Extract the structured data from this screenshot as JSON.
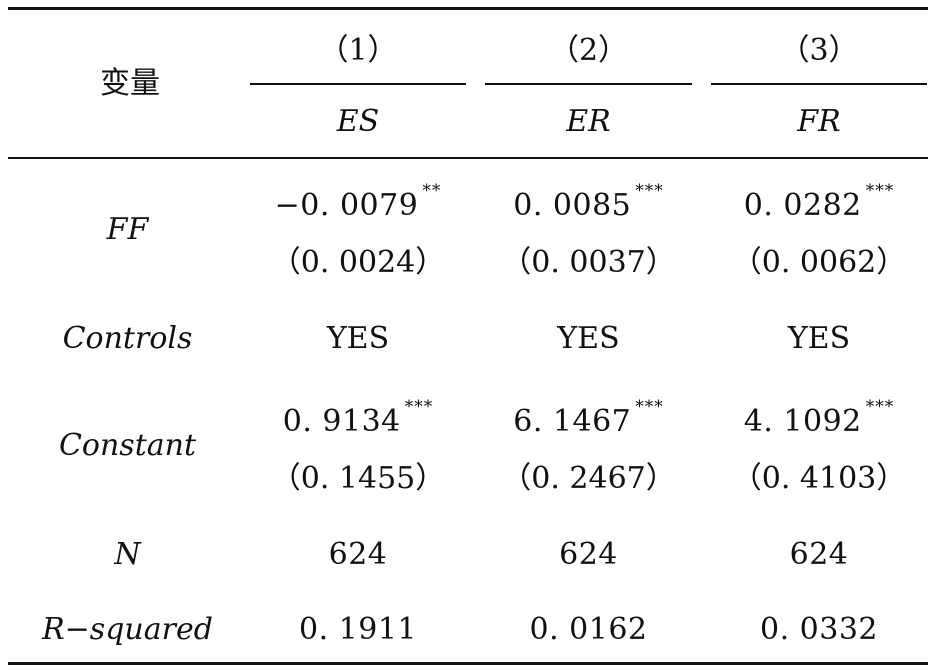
{
  "header": {
    "variable_label": "变量",
    "columns": [
      {
        "number": "（1）",
        "name": "ES"
      },
      {
        "number": "（2）",
        "name": "ER"
      },
      {
        "number": "（3）",
        "name": "FR"
      }
    ]
  },
  "rows": {
    "ff": {
      "label": "FF",
      "coef": [
        "−0. 0079",
        "0. 0085",
        "0. 0282"
      ],
      "stars": [
        "**",
        "***",
        "***"
      ],
      "se": [
        "（0. 0024）",
        "（0. 0037）",
        "（0. 0062）"
      ]
    },
    "controls": {
      "label": "Controls",
      "values": [
        "YES",
        "YES",
        "YES"
      ]
    },
    "constant": {
      "label": "Constant",
      "coef": [
        "0. 9134",
        "6. 1467",
        "4. 1092"
      ],
      "stars": [
        "***",
        "***",
        "***"
      ],
      "se": [
        "（0. 1455）",
        "（0. 2467）",
        "（0. 4103）"
      ]
    },
    "n": {
      "label": "N",
      "values": [
        "624",
        "624",
        "624"
      ]
    },
    "r2": {
      "label": "R−squared",
      "values": [
        "0. 1911",
        "0. 0162",
        "0. 0332"
      ]
    }
  }
}
